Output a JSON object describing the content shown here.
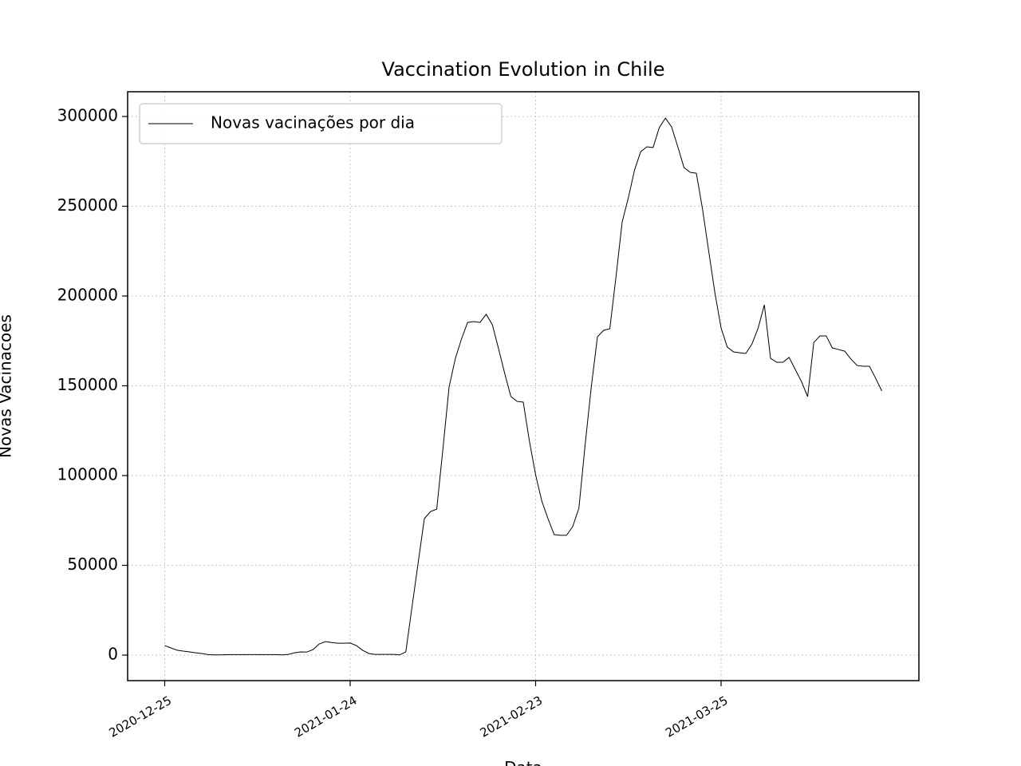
{
  "chart_data": {
    "type": "line",
    "title": "Vaccination Evolution in Chile",
    "xlabel": "Data",
    "ylabel": "Novas Vacinacoes",
    "x": [
      "2020-12-25",
      "2020-12-26",
      "2020-12-27",
      "2020-12-28",
      "2020-12-29",
      "2020-12-30",
      "2020-12-31",
      "2021-01-01",
      "2021-01-02",
      "2021-01-03",
      "2021-01-04",
      "2021-01-05",
      "2021-01-06",
      "2021-01-07",
      "2021-01-08",
      "2021-01-09",
      "2021-01-10",
      "2021-01-11",
      "2021-01-12",
      "2021-01-13",
      "2021-01-14",
      "2021-01-15",
      "2021-01-16",
      "2021-01-17",
      "2021-01-18",
      "2021-01-19",
      "2021-01-20",
      "2021-01-21",
      "2021-01-22",
      "2021-01-23",
      "2021-01-24",
      "2021-01-25",
      "2021-01-26",
      "2021-01-27",
      "2021-01-28",
      "2021-01-29",
      "2021-01-30",
      "2021-01-31",
      "2021-02-01",
      "2021-02-02",
      "2021-02-03",
      "2021-02-04",
      "2021-02-05",
      "2021-02-06",
      "2021-02-07",
      "2021-02-08",
      "2021-02-09",
      "2021-02-10",
      "2021-02-11",
      "2021-02-12",
      "2021-02-13",
      "2021-02-14",
      "2021-02-15",
      "2021-02-16",
      "2021-02-17",
      "2021-02-18",
      "2021-02-19",
      "2021-02-20",
      "2021-02-21",
      "2021-02-22",
      "2021-02-23",
      "2021-02-24",
      "2021-02-25",
      "2021-02-26",
      "2021-02-27",
      "2021-02-28",
      "2021-03-01",
      "2021-03-02",
      "2021-03-03",
      "2021-03-04",
      "2021-03-05",
      "2021-03-06",
      "2021-03-07",
      "2021-03-08",
      "2021-03-09",
      "2021-03-10",
      "2021-03-11",
      "2021-03-12",
      "2021-03-13",
      "2021-03-14",
      "2021-03-15",
      "2021-03-16",
      "2021-03-17",
      "2021-03-18",
      "2021-03-19",
      "2021-03-20",
      "2021-03-21",
      "2021-03-22",
      "2021-03-23",
      "2021-03-24",
      "2021-03-25",
      "2021-03-26",
      "2021-03-27",
      "2021-03-28",
      "2021-03-29",
      "2021-03-30",
      "2021-03-31",
      "2021-04-01",
      "2021-04-02",
      "2021-04-03",
      "2021-04-04",
      "2021-04-05",
      "2021-04-06",
      "2021-04-07",
      "2021-04-08",
      "2021-04-09",
      "2021-04-10",
      "2021-04-11",
      "2021-04-12",
      "2021-04-13",
      "2021-04-14",
      "2021-04-15",
      "2021-04-16",
      "2021-04-17",
      "2021-04-18",
      "2021-04-19",
      "2021-04-20"
    ],
    "series": [
      {
        "name": "Novas vacinações por dia",
        "color": "#000000",
        "values": [
          5300,
          4000,
          2700,
          2200,
          1800,
          1300,
          900,
          300,
          100,
          100,
          200,
          300,
          300,
          300,
          300,
          300,
          300,
          300,
          300,
          100,
          400,
          1300,
          1800,
          1700,
          3100,
          6200,
          7500,
          7000,
          6600,
          6600,
          6700,
          5300,
          2700,
          900,
          400,
          400,
          400,
          400,
          100,
          1800,
          26700,
          51500,
          76000,
          80000,
          81300,
          114700,
          149300,
          165000,
          176000,
          185300,
          185800,
          185300,
          189800,
          184000,
          170700,
          156900,
          144000,
          141300,
          140900,
          119100,
          100400,
          85800,
          76000,
          67100,
          66700,
          66700,
          71600,
          81800,
          116900,
          149300,
          177300,
          180900,
          181800,
          210700,
          241300,
          254700,
          270200,
          280400,
          283100,
          282700,
          293800,
          299100,
          294200,
          283100,
          271600,
          268900,
          268400,
          248400,
          224900,
          201800,
          182200,
          171600,
          168900,
          168400,
          168000,
          173300,
          182200,
          195100,
          165300,
          163100,
          163100,
          165800,
          159100,
          152400,
          144000,
          174200,
          177800,
          177800,
          171100,
          170200,
          169300,
          164900,
          161300,
          160900,
          160900,
          154200,
          147100
        ]
      }
    ],
    "xlim": [
      "2020-12-19",
      "2021-04-26"
    ],
    "xticks": [
      "2020-12-25",
      "2021-01-24",
      "2021-02-23",
      "2021-03-25"
    ],
    "ylim": [
      -14222,
      313778
    ],
    "yticks": [
      0,
      50000,
      100000,
      150000,
      200000,
      250000,
      300000
    ],
    "grid": true,
    "legend": "upper left"
  }
}
